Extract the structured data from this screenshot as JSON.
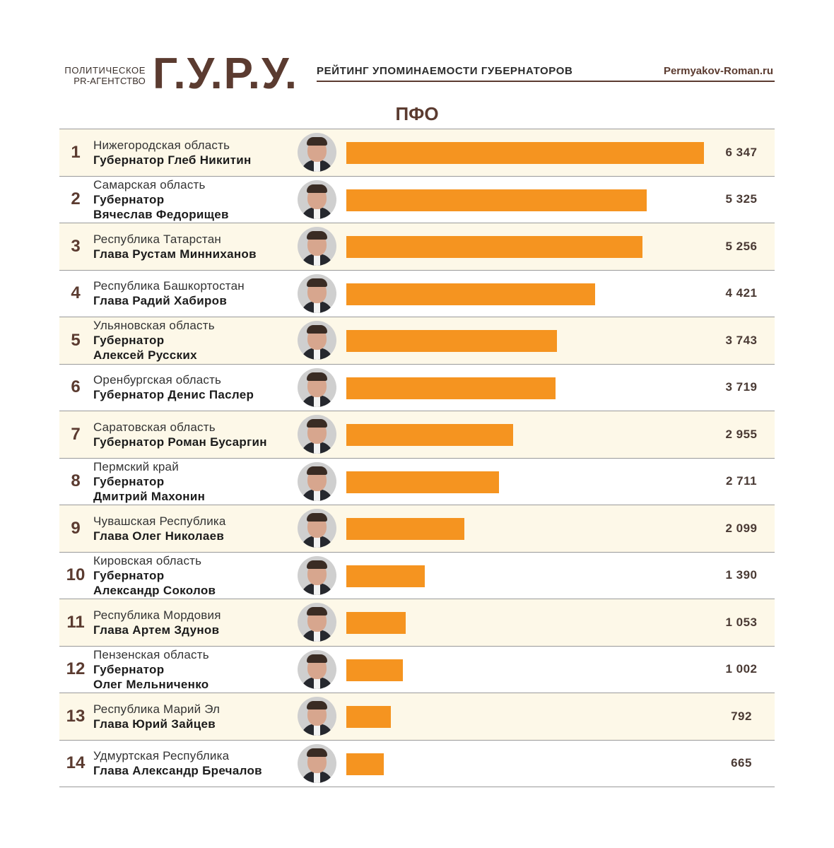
{
  "header": {
    "agency_line1": "ПОЛИТИЧЕСКОЕ",
    "agency_line2": "PR-АГЕНТСТВО",
    "logo": "Г.У.Р.У.",
    "subtitle": "РЕЙТИНГ УПОМИНАЕМОСТИ ГУБЕРНАТОРОВ",
    "site": "Permyakov-Roman.ru"
  },
  "colors": {
    "brand": "#5b3b30",
    "bar": "#f59420",
    "alt_row": "#fdf8e8"
  },
  "chart_data": {
    "type": "bar",
    "title": "ПФО",
    "xlim": [
      0,
      6347
    ],
    "rows": [
      {
        "rank": "1",
        "region": "Нижегородская область",
        "person": [
          "Губернатор Глеб Никитин"
        ],
        "value": 6347,
        "label": "6 347"
      },
      {
        "rank": "2",
        "region": "Самарская область",
        "person": [
          "Губернатор",
          "Вячеслав Федорищев"
        ],
        "value": 5325,
        "label": "5 325"
      },
      {
        "rank": "3",
        "region": "Республика Татарстан",
        "person": [
          "Глава Рустам Минниханов"
        ],
        "value": 5256,
        "label": "5 256"
      },
      {
        "rank": "4",
        "region": "Республика Башкортостан",
        "person": [
          "Глава Радий Хабиров"
        ],
        "value": 4421,
        "label": "4 421"
      },
      {
        "rank": "5",
        "region": "Ульяновская область",
        "person": [
          "Губернатор",
          "Алексей Русских"
        ],
        "value": 3743,
        "label": "3 743"
      },
      {
        "rank": "6",
        "region": "Оренбургская область",
        "person": [
          "Губернатор Денис Паслер"
        ],
        "value": 3719,
        "label": "3 719"
      },
      {
        "rank": "7",
        "region": "Саратовская область",
        "person": [
          "Губернатор Роман Бусаргин"
        ],
        "value": 2955,
        "label": "2 955"
      },
      {
        "rank": "8",
        "region": "Пермский край",
        "person": [
          "Губернатор",
          "Дмитрий Махонин"
        ],
        "value": 2711,
        "label": "2 711"
      },
      {
        "rank": "9",
        "region": "Чувашская Республика",
        "person": [
          "Глава Олег Николаев"
        ],
        "value": 2099,
        "label": "2 099"
      },
      {
        "rank": "10",
        "region": "Кировская область",
        "person": [
          "Губернатор",
          "Александр Соколов"
        ],
        "value": 1390,
        "label": "1 390"
      },
      {
        "rank": "11",
        "region": "Республика Мордовия",
        "person": [
          "Глава Артем Здунов"
        ],
        "value": 1053,
        "label": "1 053"
      },
      {
        "rank": "12",
        "region": "Пензенская область",
        "person": [
          "Губернатор",
          "Олег Мельниченко"
        ],
        "value": 1002,
        "label": "1 002"
      },
      {
        "rank": "13",
        "region": "Республика Марий Эл",
        "person": [
          "Глава Юрий Зайцев"
        ],
        "value": 792,
        "label": "792"
      },
      {
        "rank": "14",
        "region": "Удмуртская Республика",
        "person": [
          "Глава Александр Бречалов"
        ],
        "value": 665,
        "label": "665"
      }
    ]
  }
}
